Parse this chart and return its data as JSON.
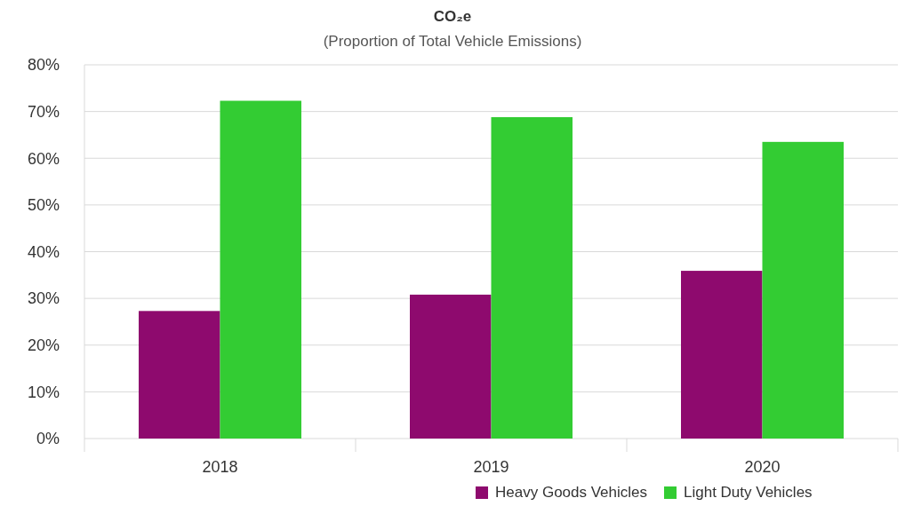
{
  "chart_data": {
    "type": "bar",
    "title": "CO₂e",
    "subtitle": "(Proportion of Total Vehicle Emissions)",
    "categories": [
      "2018",
      "2019",
      "2020"
    ],
    "series": [
      {
        "name": "Heavy Goods Vehicles",
        "color": "#8e0a6e",
        "values": [
          27.3,
          30.8,
          35.9
        ]
      },
      {
        "name": "Light Duty Vehicles",
        "color": "#33cc33",
        "values": [
          72.3,
          68.8,
          63.5
        ]
      }
    ],
    "ylim": [
      0,
      80
    ],
    "yticks": [
      {
        "value": 0,
        "label": "0%"
      },
      {
        "value": 10,
        "label": "10%"
      },
      {
        "value": 20,
        "label": "20%"
      },
      {
        "value": 30,
        "label": "30%"
      },
      {
        "value": 40,
        "label": "40%"
      },
      {
        "value": 50,
        "label": "50%"
      },
      {
        "value": 60,
        "label": "60%"
      },
      {
        "value": 70,
        "label": "70%"
      },
      {
        "value": 80,
        "label": "80%"
      }
    ],
    "grid": "y",
    "legend": "bottom right"
  }
}
